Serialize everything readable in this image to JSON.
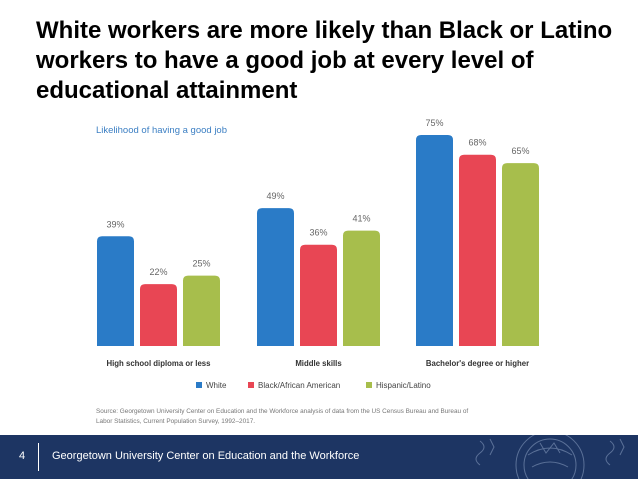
{
  "slide": {
    "title": "White workers are more likely than Black or Latino workers to have a good job at every level of educational attainment"
  },
  "chart_data": {
    "type": "bar",
    "title": "Likelihood of having a good job",
    "categories": [
      "High school diploma or less",
      "Middle skills",
      "Bachelor's degree or higher"
    ],
    "series": [
      {
        "name": "White",
        "color": "#2a7bc7",
        "values": [
          39,
          49,
          75
        ],
        "labels": [
          "39%",
          "49%",
          "75%"
        ]
      },
      {
        "name": "Black/African American",
        "color": "#e84654",
        "values": [
          22,
          36,
          68
        ],
        "labels": [
          "22%",
          "36%",
          "68%"
        ]
      },
      {
        "name": "Hispanic/Latino",
        "color": "#a7be4c",
        "values": [
          25,
          41,
          65
        ],
        "labels": [
          "25%",
          "41%",
          "65%"
        ]
      }
    ],
    "ylim": [
      0,
      75
    ],
    "grid": false,
    "legend_position": "bottom",
    "source": "Source: Georgetown University Center on Education and the Workforce analysis of data from the US Census Bureau and Bureau of Labor Statistics, Current Population Survey, 1992–2017."
  },
  "footer": {
    "page_number": "4",
    "organization": "Georgetown University Center on Education and the Workforce",
    "color": "#1d3563"
  }
}
